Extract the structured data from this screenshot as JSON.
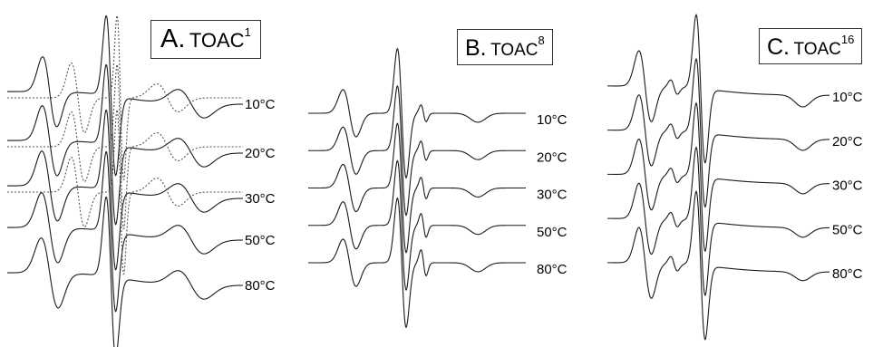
{
  "chart_data": [
    {
      "type": "line",
      "panel_letter": "A.",
      "probe": "TOAC",
      "position": "1",
      "series": [
        {
          "name": "10°C",
          "baseline": 0.0
        },
        {
          "name": "20°C",
          "baseline": 0.27
        },
        {
          "name": "30°C",
          "baseline": 0.52
        },
        {
          "name": "50°C",
          "baseline": 0.75
        },
        {
          "name": "80°C",
          "baseline": 1.0
        }
      ],
      "dashed_series": [
        {
          "baseline": 0.0
        },
        {
          "baseline": 0.27
        },
        {
          "baseline": 0.52
        }
      ],
      "grid": false,
      "axes_visible": false,
      "legend": "right",
      "line_color": "#1a1a1a",
      "dashed_color": "#555555"
    },
    {
      "type": "line",
      "panel_letter": "B.",
      "probe": "TOAC",
      "position": "8",
      "series": [
        {
          "name": "10°C",
          "baseline": 0.0
        },
        {
          "name": "20°C",
          "baseline": 0.25
        },
        {
          "name": "30°C",
          "baseline": 0.5
        },
        {
          "name": "50°C",
          "baseline": 0.75
        },
        {
          "name": "80°C",
          "baseline": 1.0
        }
      ],
      "grid": false,
      "axes_visible": false,
      "legend": "right",
      "line_color": "#1a1a1a"
    },
    {
      "type": "line",
      "panel_letter": "C.",
      "probe": "TOAC",
      "position": "16",
      "series": [
        {
          "name": "10°C",
          "baseline": 0.0
        },
        {
          "name": "20°C",
          "baseline": 0.25
        },
        {
          "name": "30°C",
          "baseline": 0.5
        },
        {
          "name": "50°C",
          "baseline": 0.75
        },
        {
          "name": "80°C",
          "baseline": 1.0
        }
      ],
      "grid": false,
      "axes_visible": false,
      "legend": "right",
      "line_color": "#1a1a1a"
    }
  ]
}
